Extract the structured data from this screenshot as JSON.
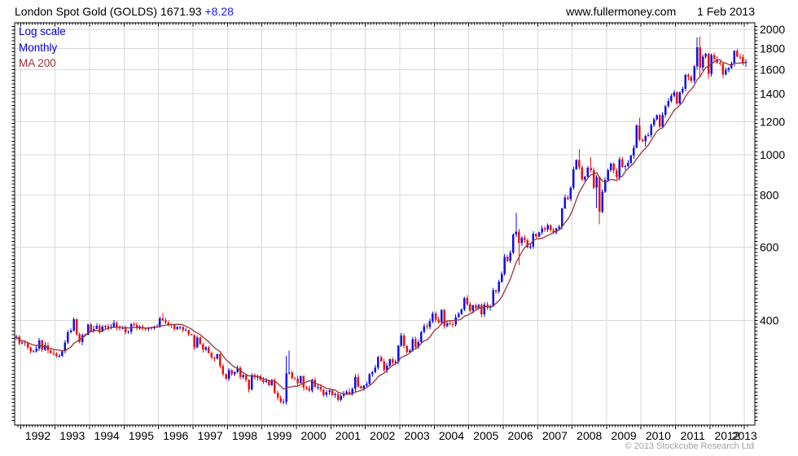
{
  "header": {
    "title": "London Spot Gold (GOLDS) 1671.93",
    "change": "+8.28",
    "site": "www.fullermoney.com",
    "date": "1 Feb 2013"
  },
  "legend": {
    "scale_label": "Log scale",
    "interval_label": "Monthly",
    "ma_label": "MA 200"
  },
  "footer": {
    "copyright": "© 2013 Stockcube Research Ltd"
  },
  "colors": {
    "up": "#1010e8",
    "down": "#ee1111",
    "ma": "#993333",
    "grid": "#d9d9d9",
    "axis": "#000000",
    "label": "#000000",
    "legend_blue": "#0000cc",
    "change_blue": "#1a1aee",
    "copyright_gray": "#a0a0a0"
  },
  "chart_data": {
    "type": "candlestick",
    "title": "London Spot Gold (GOLDS)",
    "interval": "monthly",
    "log_scale": true,
    "last_price": 1671.93,
    "change": 8.28,
    "start": "1991-11",
    "end": "2013-01",
    "ylim": [
      225,
      2070
    ],
    "y_axis_ticks": [
      2000,
      1800,
      1600,
      1400,
      1200,
      1000,
      800,
      600,
      400
    ],
    "x_axis_ticks": [
      1992,
      1993,
      1994,
      1995,
      1996,
      1997,
      1998,
      1999,
      2000,
      2001,
      2002,
      2003,
      2004,
      2005,
      2006,
      2007,
      2008,
      2009,
      2010,
      2011,
      2012,
      2013
    ],
    "ma_months": 9,
    "monthly_closes": {
      "1991": [
        366,
        353
      ],
      "1992": [
        354,
        353,
        344,
        337,
        337,
        343,
        358,
        340,
        349,
        339,
        334,
        333
      ],
      "1993": [
        329,
        329,
        337,
        354,
        375,
        378,
        403,
        371,
        355,
        369,
        370,
        391
      ],
      "1994": [
        377,
        382,
        389,
        377,
        387,
        388,
        384,
        386,
        395,
        384,
        383,
        383
      ],
      "1995": [
        375,
        376,
        392,
        390,
        385,
        387,
        383,
        382,
        384,
        383,
        387,
        387
      ],
      "1996": [
        405,
        400,
        396,
        391,
        390,
        382,
        386,
        386,
        379,
        379,
        371,
        369
      ],
      "1997": [
        345,
        364,
        351,
        340,
        345,
        334,
        326,
        324,
        332,
        311,
        297,
        290
      ],
      "1998": [
        304,
        297,
        301,
        308,
        293,
        296,
        288,
        273,
        296,
        292,
        294,
        288
      ],
      "1999": [
        285,
        287,
        280,
        287,
        268,
        261,
        255,
        255,
        299,
        300,
        291,
        290
      ],
      "2000": [
        283,
        294,
        276,
        275,
        272,
        288,
        277,
        277,
        273,
        265,
        269,
        272
      ],
      "2001": [
        265,
        266,
        258,
        264,
        267,
        270,
        266,
        274,
        293,
        278,
        275,
        279
      ],
      "2002": [
        282,
        297,
        301,
        308,
        327,
        319,
        304,
        312,
        323,
        317,
        318,
        348
      ],
      "2003": [
        368,
        347,
        336,
        339,
        361,
        346,
        355,
        376,
        388,
        386,
        398,
        416
      ],
      "2004": [
        402,
        396,
        424,
        388,
        394,
        392,
        391,
        407,
        415,
        425,
        453,
        438
      ],
      "2005": [
        422,
        435,
        428,
        436,
        414,
        437,
        429,
        433,
        473,
        470,
        495,
        517
      ],
      "2006": [
        569,
        556,
        582,
        644,
        653,
        613,
        632,
        623,
        599,
        603,
        646,
        636
      ],
      "2007": [
        651,
        665,
        661,
        677,
        659,
        650,
        665,
        672,
        743,
        789,
        783,
        833
      ],
      "2008": [
        923,
        971,
        933,
        871,
        885,
        930,
        918,
        833,
        884,
        730,
        814,
        869
      ],
      "2009": [
        919,
        952,
        916,
        883,
        975,
        934,
        939,
        955,
        995,
        1040,
        1175,
        1087
      ],
      "2010": [
        1078,
        1108,
        1115,
        1179,
        1215,
        1244,
        1169,
        1246,
        1307,
        1346,
        1385,
        1410
      ],
      "2011": [
        1327,
        1411,
        1439,
        1556,
        1536,
        1505,
        1628,
        1813,
        1620,
        1722,
        1746,
        1564
      ],
      "2012": [
        1737,
        1696,
        1662,
        1651,
        1558,
        1598,
        1615,
        1654,
        1776,
        1719,
        1715,
        1664
      ],
      "2013": [
        1671.93
      ]
    },
    "wick_overrides": {
      "1996-02": {
        "high": 417
      },
      "1999-08": {
        "low": 252
      },
      "1999-09": {
        "high": 329
      },
      "1999-10": {
        "high": 339
      },
      "2001-04": {
        "low": 256
      },
      "2006-05": {
        "high": 725
      },
      "2006-06": {
        "low": 543
      },
      "2008-03": {
        "high": 1032
      },
      "2008-07": {
        "high": 986
      },
      "2008-09": {
        "low": 745
      },
      "2008-10": {
        "low": 681
      },
      "2009-12": {
        "high": 1226
      },
      "2010-02": {
        "low": 1045
      },
      "2011-08": {
        "high": 1913
      },
      "2011-09": {
        "high": 1921,
        "low": 1535
      },
      "2011-12": {
        "low": 1523
      },
      "2012-05": {
        "low": 1527
      },
      "2012-10": {
        "high": 1796
      },
      "2013-01": {
        "high": 1696,
        "low": 1626
      }
    }
  }
}
